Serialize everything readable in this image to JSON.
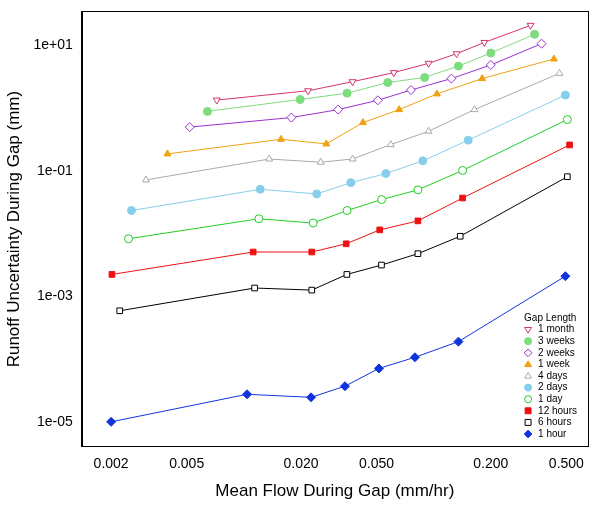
{
  "chart_data": {
    "type": "line",
    "x_label": "Mean Flow During Gap (mm/hr)",
    "y_label": "Runoff Uncertainty During Gap (mm)",
    "log": true,
    "grid": false,
    "legend": "bottom-right",
    "legend_title": "Gap Length",
    "xlim": [
      0.0014,
      0.65
    ],
    "ylim": [
      4e-06,
      35
    ],
    "xticks": [
      0.002,
      0.005,
      {
        "value": 0.02,
        "label": "0.020"
      },
      {
        "value": 0.05,
        "label": "0.050"
      },
      {
        "value": 0.2,
        "label": "0.200"
      },
      {
        "value": 0.5,
        "label": "0.500"
      }
    ],
    "yticks": [
      {
        "value": 1e-05,
        "label": "1e-05"
      },
      {
        "value": 0.001,
        "label": "1e-03"
      },
      {
        "value": 0.1,
        "label": "1e-01"
      },
      {
        "value": 10,
        "label": "1e+01"
      }
    ],
    "series": [
      {
        "name": "1 month",
        "color": "#d6336c",
        "marker": "triangle-down-open",
        "x": [
          0.0072,
          0.0218,
          0.0374,
          0.0617,
          0.094,
          0.132,
          0.185,
          0.324
        ],
        "values": [
          1.35,
          1.9,
          2.65,
          3.7,
          5.2,
          7.4,
          11.2,
          21
        ]
      },
      {
        "name": "3 weeks",
        "color": "#7ddc7d",
        "marker": "circle-filled",
        "x": [
          0.00643,
          0.0198,
          0.035,
          0.0573,
          0.0896,
          0.135,
          0.2,
          0.34
        ],
        "values": [
          0.89,
          1.38,
          1.74,
          2.57,
          3.1,
          4.7,
          7.6,
          15.1
        ]
      },
      {
        "name": "2 weeks",
        "color": "#9b30d0",
        "marker": "diamond-open",
        "x": [
          0.00519,
          0.0178,
          0.0314,
          0.0508,
          0.0759,
          0.124,
          0.2,
          0.37
        ],
        "values": [
          0.5,
          0.71,
          0.95,
          1.34,
          1.95,
          2.97,
          4.9,
          10.7
        ]
      },
      {
        "name": "1 week",
        "color": "#f0a010",
        "marker": "triangle-filled",
        "x": [
          0.00396,
          0.0157,
          0.0272,
          0.0424,
          0.0658,
          0.104,
          0.18,
          0.43
        ],
        "values": [
          0.187,
          0.32,
          0.27,
          0.59,
          0.95,
          1.69,
          2.97,
          6.1
        ]
      },
      {
        "name": "4 days",
        "color": "#aaaaaa",
        "marker": "triangle-open",
        "x": [
          0.00305,
          0.0136,
          0.0254,
          0.0374,
          0.0594,
          0.094,
          0.164,
          0.46
        ],
        "values": [
          0.072,
          0.155,
          0.138,
          0.155,
          0.263,
          0.43,
          0.95,
          3.6
        ]
      },
      {
        "name": "2 days",
        "color": "#87ceeb",
        "marker": "circle-filled",
        "x": [
          0.00256,
          0.0122,
          0.0242,
          0.0366,
          0.056,
          0.0877,
          0.152,
          0.494
        ],
        "values": [
          0.0234,
          0.051,
          0.043,
          0.065,
          0.091,
          0.145,
          0.31,
          1.62
        ]
      },
      {
        "name": "1 day",
        "color": "#22cc22",
        "marker": "circle-open",
        "x": [
          0.00247,
          0.012,
          0.0232,
          0.035,
          0.0532,
          0.0826,
          0.142,
          0.506
        ],
        "values": [
          0.0083,
          0.0173,
          0.0148,
          0.0234,
          0.035,
          0.05,
          0.102,
          0.66
        ]
      },
      {
        "name": "12 hours",
        "color": "#ee1111",
        "marker": "square-filled",
        "x": [
          0.00202,
          0.0112,
          0.0228,
          0.0346,
          0.052,
          0.0826,
          0.142,
          0.52
        ],
        "values": [
          0.00224,
          0.0051,
          0.0051,
          0.0069,
          0.0115,
          0.016,
          0.037,
          0.26
        ]
      },
      {
        "name": "6 hours",
        "color": "#000000",
        "marker": "square-open",
        "x": [
          0.00222,
          0.0114,
          0.0228,
          0.0349,
          0.0531,
          0.0826,
          0.138,
          0.506
        ],
        "values": [
          0.00059,
          0.00136,
          0.00126,
          0.00224,
          0.00316,
          0.0048,
          0.0091,
          0.081
        ]
      },
      {
        "name": "1 hour",
        "color": "#1133dd",
        "marker": "diamond-filled",
        "x": [
          0.002,
          0.0104,
          0.0226,
          0.0341,
          0.0515,
          0.0797,
          0.135,
          0.494
        ],
        "values": [
          1e-05,
          2.75e-05,
          2.46e-05,
          3.7e-05,
          7.1e-05,
          0.000107,
          0.00019,
          0.0021
        ]
      }
    ]
  }
}
